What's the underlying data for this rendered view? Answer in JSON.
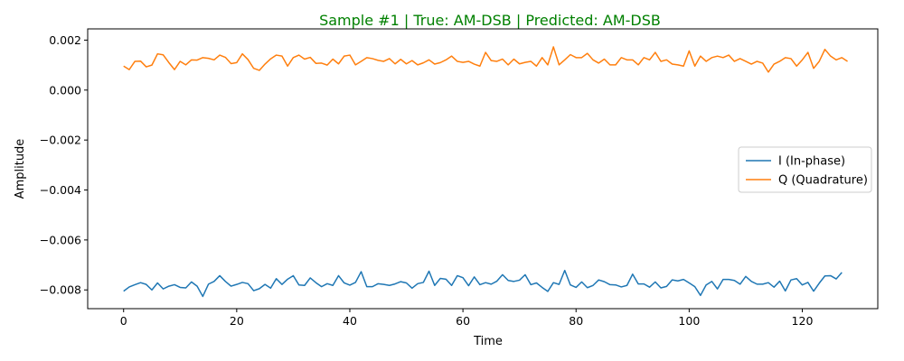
{
  "chart_data": {
    "type": "line",
    "title": "Sample #1 | True: AM-DSB | Predicted: AM-DSB",
    "title_color": "#008000",
    "xlabel": "Time",
    "ylabel": "Amplitude",
    "xlim": [
      -6.35,
      133.35
    ],
    "ylim": [
      -0.00875,
      0.00245
    ],
    "xticks": [
      0,
      20,
      40,
      60,
      80,
      100,
      120
    ],
    "xtick_labels": [
      "0",
      "20",
      "40",
      "60",
      "80",
      "100",
      "120"
    ],
    "yticks": [
      -0.008,
      -0.006,
      -0.004,
      -0.002,
      0.0,
      0.002
    ],
    "ytick_labels": [
      "−0.008",
      "−0.006",
      "−0.004",
      "−0.002",
      "0.000",
      "0.002"
    ],
    "grid": false,
    "legend_position": "center-right",
    "series": [
      {
        "name": "I (In-phase)",
        "color": "#1f77b4",
        "values": [
          -0.00805,
          -0.00788,
          -0.00779,
          -0.00771,
          -0.00778,
          -0.008,
          -0.00772,
          -0.00796,
          -0.00785,
          -0.00779,
          -0.0079,
          -0.00792,
          -0.00768,
          -0.00785,
          -0.00826,
          -0.00777,
          -0.00766,
          -0.00743,
          -0.00766,
          -0.00785,
          -0.00778,
          -0.0077,
          -0.00775,
          -0.00803,
          -0.00795,
          -0.00778,
          -0.00793,
          -0.00755,
          -0.00778,
          -0.00757,
          -0.00743,
          -0.0078,
          -0.00782,
          -0.00752,
          -0.00771,
          -0.00787,
          -0.00775,
          -0.00782,
          -0.00743,
          -0.00772,
          -0.00781,
          -0.0077,
          -0.00727,
          -0.00787,
          -0.00787,
          -0.00775,
          -0.00778,
          -0.00782,
          -0.00776,
          -0.00767,
          -0.00772,
          -0.00793,
          -0.00775,
          -0.0077,
          -0.00725,
          -0.00782,
          -0.00754,
          -0.00757,
          -0.00782,
          -0.00743,
          -0.00751,
          -0.00783,
          -0.00748,
          -0.00779,
          -0.00771,
          -0.00777,
          -0.00765,
          -0.00739,
          -0.00762,
          -0.00766,
          -0.00761,
          -0.00739,
          -0.00779,
          -0.00772,
          -0.0079,
          -0.00806,
          -0.00771,
          -0.00778,
          -0.00722,
          -0.0078,
          -0.0079,
          -0.00768,
          -0.00791,
          -0.00782,
          -0.0076,
          -0.00767,
          -0.00779,
          -0.0078,
          -0.00788,
          -0.00782,
          -0.00737,
          -0.00776,
          -0.00776,
          -0.00789,
          -0.00768,
          -0.00792,
          -0.00786,
          -0.0076,
          -0.00764,
          -0.00758,
          -0.00772,
          -0.00787,
          -0.00822,
          -0.0078,
          -0.00766,
          -0.00796,
          -0.00758,
          -0.00758,
          -0.00762,
          -0.00777,
          -0.00746,
          -0.00766,
          -0.00777,
          -0.00777,
          -0.00771,
          -0.00789,
          -0.00765,
          -0.00804,
          -0.0076,
          -0.00755,
          -0.0078,
          -0.0077,
          -0.00805,
          -0.00773,
          -0.00744,
          -0.00743,
          -0.00756,
          -0.0073
        ]
      },
      {
        "name": "Q (Quadrature)",
        "color": "#ff7f0e",
        "values": [
          0.00096,
          0.00082,
          0.00115,
          0.00116,
          0.00093,
          0.001,
          0.00145,
          0.00141,
          0.0011,
          0.00082,
          0.00115,
          0.00101,
          0.00121,
          0.0012,
          0.0013,
          0.00127,
          0.00121,
          0.0014,
          0.00131,
          0.00106,
          0.0011,
          0.00145,
          0.00122,
          0.00087,
          0.00079,
          0.00104,
          0.00125,
          0.0014,
          0.00136,
          0.00096,
          0.0013,
          0.0014,
          0.00124,
          0.00131,
          0.00107,
          0.00108,
          0.001,
          0.00124,
          0.00105,
          0.00136,
          0.0014,
          0.00101,
          0.00115,
          0.0013,
          0.00126,
          0.00119,
          0.00115,
          0.00126,
          0.00105,
          0.00123,
          0.00105,
          0.00118,
          0.00101,
          0.00109,
          0.00121,
          0.00104,
          0.0011,
          0.00121,
          0.00136,
          0.00115,
          0.00111,
          0.00115,
          0.00104,
          0.00096,
          0.00151,
          0.00118,
          0.00115,
          0.00124,
          0.00101,
          0.00124,
          0.00105,
          0.00111,
          0.00115,
          0.00096,
          0.0013,
          0.00101,
          0.00173,
          0.00101,
          0.00121,
          0.00142,
          0.0013,
          0.0013,
          0.00147,
          0.00121,
          0.00108,
          0.00124,
          0.00101,
          0.00101,
          0.0013,
          0.00121,
          0.00121,
          0.00101,
          0.0013,
          0.00121,
          0.00151,
          0.00115,
          0.00121,
          0.00104,
          0.00101,
          0.00096,
          0.00157,
          0.00096,
          0.00136,
          0.00115,
          0.0013,
          0.00136,
          0.0013,
          0.0014,
          0.00115,
          0.00126,
          0.00115,
          0.00104,
          0.00115,
          0.00108,
          0.00072,
          0.00104,
          0.00115,
          0.0013,
          0.00126,
          0.00096,
          0.00121,
          0.00151,
          0.00087,
          0.00115,
          0.00163,
          0.00136,
          0.00121,
          0.0013,
          0.00115
        ]
      }
    ]
  }
}
